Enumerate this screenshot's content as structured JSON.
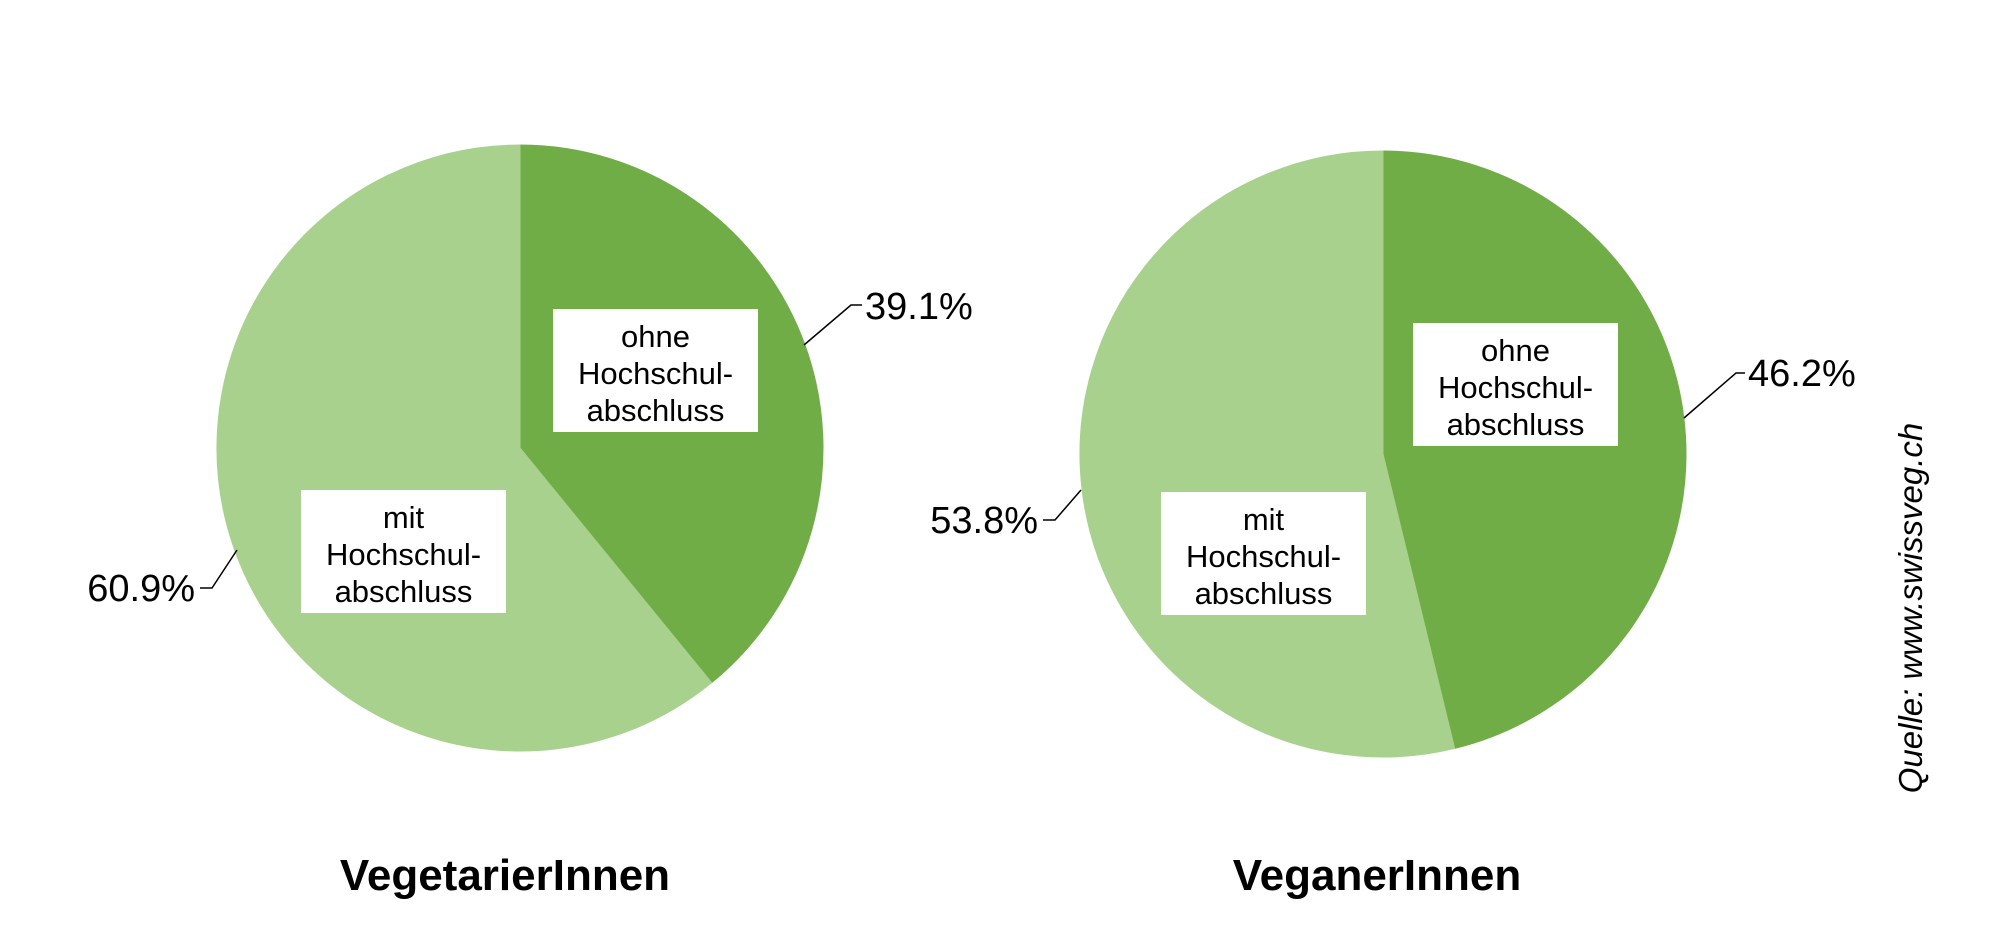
{
  "chart_data": [
    {
      "type": "pie",
      "title": "VegetarierInnen",
      "slices": [
        {
          "label": [
            "ohne",
            "Hochschul-",
            "abschluss"
          ],
          "value": 39.1,
          "value_label": "39.1%",
          "color": "#71ad47"
        },
        {
          "label": [
            "mit",
            "Hochschul-",
            "abschluss"
          ],
          "value": 60.9,
          "value_label": "60.9%",
          "color": "#a9d18e"
        }
      ]
    },
    {
      "type": "pie",
      "title": "VeganerInnen",
      "slices": [
        {
          "label": [
            "ohne",
            "Hochschul-",
            "abschluss"
          ],
          "value": 46.2,
          "value_label": "46.2%",
          "color": "#71ad47"
        },
        {
          "label": [
            "mit",
            "Hochschul-",
            "abschluss"
          ],
          "value": 53.8,
          "value_label": "53.8%",
          "color": "#a9d18e"
        }
      ]
    }
  ],
  "source": "Quelle: www.swissveg.ch"
}
